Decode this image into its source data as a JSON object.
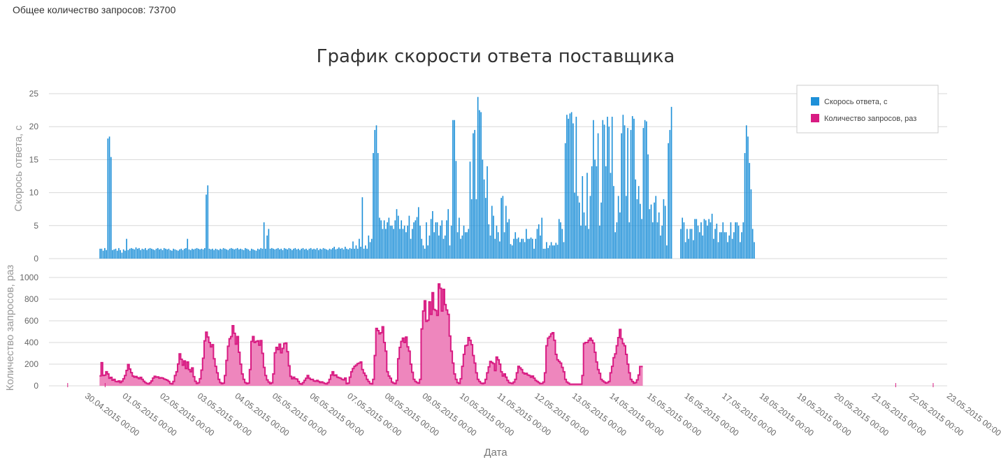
{
  "summary": {
    "total_requests": "Общее количество запросов: 73700"
  },
  "colors": {
    "speed": "#1e90d8",
    "requests_line": "#d81b82",
    "requests_fill": "#ee86bd",
    "grid": "#d8d8d8",
    "axis_text": "#666666"
  },
  "chart_data": {
    "type": "bar",
    "title": "График скорости ответа поставщика",
    "xlabel": "Дата",
    "x_ticks": [
      "30.04.2015 00:00",
      "01.05.2015 00:00",
      "02.05.2015 00:00",
      "03.05.2015 00:00",
      "04.05.2015 00:00",
      "05.05.2015 00:00",
      "06.05.2015 00:00",
      "07.05.2015 00:00",
      "08.05.2015 00:00",
      "09.05.2015 00:00",
      "10.05.2015 00:00",
      "11.05.2015 00:00",
      "12.05.2015 00:00",
      "13.05.2015 00:00",
      "14.05.2015 00:00",
      "15.05.2015 00:00",
      "16.05.2015 00:00",
      "17.05.2015 00:00",
      "18.05.2015 00:00",
      "19.05.2015 00:00",
      "20.05.2015 00:00",
      "21.05.2015 00:00",
      "22.05.2015 00:00",
      "23.05.2015 00:00"
    ],
    "grid": true,
    "legend_position": "top-right",
    "panels": [
      {
        "name": "Скорось ответа, с",
        "ylabel": "Скорось ответа, с",
        "type": "bar",
        "ylim": [
          0,
          25
        ],
        "yticks": [
          0,
          5,
          10,
          15,
          20,
          25
        ],
        "x_start_day": 1.35,
        "x_step_hours": 1,
        "values": [
          1.5,
          1.5,
          1.2,
          1.6,
          1.3,
          18.2,
          18.5,
          15.4,
          1.3,
          1.4,
          1.5,
          1.2,
          1.6,
          1.3,
          0.9,
          1.4,
          1.2,
          3,
          1.3,
          1.5,
          1.6,
          1.5,
          1.4,
          1.7,
          1.5,
          1.6,
          1.3,
          1.5,
          1.4,
          1.6,
          1.3,
          1.5,
          1.6,
          1.5,
          1.4,
          1.3,
          1.5,
          1.6,
          1.4,
          1.5,
          1.3,
          1.6,
          1.5,
          1.4,
          1.5,
          1.3,
          1.2,
          1.5,
          1.4,
          1.3,
          1.2,
          1.4,
          1.5,
          1.3,
          1.5,
          1.6,
          3,
          1.4,
          1.3,
          1.5,
          1.4,
          1.5,
          1.6,
          1.5,
          1.4,
          1.5,
          1.4,
          1.6,
          9.7,
          11.1,
          1.5,
          1.4,
          1.5,
          1.3,
          1.5,
          1.4,
          1.3,
          1.5,
          1.4,
          1.6,
          1.5,
          1.4,
          1.3,
          1.5,
          1.6,
          1.5,
          1.4,
          1.5,
          1.6,
          1.4,
          1.5,
          1.4,
          1.3,
          1.6,
          1.5,
          1.4,
          1.2,
          1.5,
          1.4,
          1.3,
          1.2,
          1.5,
          1.4,
          1.6,
          1.5,
          5.5,
          1.5,
          3.5,
          4.5,
          1.5,
          1.6,
          1.5,
          1.4,
          1.5,
          1.6,
          1.4,
          1.5,
          1.3,
          1.6,
          1.5,
          1.4,
          1.6,
          1.5,
          1.3,
          1.5,
          1.6,
          1.4,
          1.5,
          1.3,
          1.5,
          1.6,
          1.4,
          1.5,
          1.3,
          1.5,
          1.6,
          1.4,
          1.5,
          1.4,
          1.6,
          1.3,
          1.5,
          1.4,
          1.6,
          1.5,
          1.4,
          1.3,
          1.5,
          1.4,
          1.6,
          1.8,
          1.4,
          1.5,
          1.7,
          1.5,
          1.6,
          1.4,
          1.8,
          1.5,
          1.4,
          1.6,
          1.5,
          2.6,
          1.5,
          2,
          1.5,
          3,
          1.8,
          9.3,
          1.5,
          2,
          1.5,
          3.5,
          2.5,
          3,
          16,
          19.5,
          20.2,
          16,
          6.2,
          5.8,
          4.5,
          5.8,
          4.5,
          5.5,
          6.2,
          5,
          5,
          4.5,
          5.8,
          7.5,
          6.5,
          4.5,
          5.8,
          4.5,
          5,
          4,
          5,
          6.5,
          3,
          4.5,
          5.5,
          5.8,
          6.3,
          7.8,
          5,
          3,
          2,
          1.5,
          5.5,
          2,
          3.5,
          6,
          7.2,
          4,
          5.5,
          5.5,
          3.5,
          5,
          5.8,
          3,
          3.5,
          5.8,
          7.5,
          2,
          5,
          21,
          21,
          14.8,
          4,
          6.2,
          3,
          3.5,
          5,
          4,
          4,
          4.5,
          14.7,
          9,
          19,
          19.5,
          9,
          24.5,
          22.5,
          22.2,
          15,
          12,
          9.2,
          14,
          5.2,
          3.5,
          8,
          6.5,
          3,
          5,
          4,
          2.6,
          9.2,
          9.5,
          4,
          8,
          5.5,
          6,
          2.2,
          2,
          3,
          4,
          3,
          3.2,
          2.5,
          3,
          3,
          2.5,
          4.5,
          3,
          3,
          3.2,
          3,
          1.5,
          3,
          4.5,
          5.2,
          3.5,
          6.2,
          1.5,
          1.5,
          2.5,
          1.6,
          2,
          2.5,
          2,
          2,
          2.4,
          2.1,
          6,
          5.5,
          4.5,
          2.5,
          17.5,
          21.8,
          21.2,
          22,
          22.2,
          20.5,
          10,
          21.5,
          9.5,
          8.5,
          5,
          12.5,
          7,
          5,
          13,
          4.5,
          9.5,
          14,
          21,
          15,
          14,
          19,
          5,
          8.5,
          21,
          20.3,
          14,
          21.5,
          20,
          13,
          21.5,
          11,
          4,
          5.5,
          9.5,
          7,
          19,
          21.8,
          20.2,
          9.5,
          19.8,
          5.5,
          19.5,
          21.6,
          21.2,
          12,
          9,
          11,
          8.3,
          6,
          19.8,
          21,
          20.8,
          15.8,
          7.5,
          8.2,
          5.5,
          8.5,
          9.5,
          5.5,
          7,
          3.5,
          5,
          9,
          8,
          2,
          17.5,
          19.5,
          23,
          null,
          null,
          null,
          null,
          null,
          4.5,
          6.2,
          5.5,
          2.5,
          4.5,
          3,
          4.5,
          4.5,
          2.8,
          6,
          6,
          5,
          4,
          5.5,
          3.5,
          6,
          5.8,
          5,
          6,
          5.5,
          6.8,
          3,
          4.5,
          5.3,
          2.5,
          4,
          4,
          5.5,
          4,
          4,
          2.5,
          3.5,
          5.5,
          3,
          4,
          5.5,
          5.5,
          5,
          2.5,
          4,
          5.5,
          16,
          20.2,
          18.5,
          14.5,
          10.5,
          4.5,
          2.5
        ]
      },
      {
        "name": "Количество запросов, раз",
        "ylabel": "Количество запросов, раз",
        "type": "area",
        "ylim": [
          0,
          1000
        ],
        "yticks": [
          0,
          200,
          400,
          600,
          800,
          1000
        ],
        "x_start_day": 1.35,
        "x_step_hours": 1,
        "values": [
          92,
          214,
          95,
          98,
          130,
          110,
          70,
          78,
          52,
          60,
          40,
          38,
          45,
          30,
          43,
          65,
          95,
          142,
          197,
          155,
          122,
          90,
          80,
          86,
          75,
          66,
          78,
          60,
          42,
          30,
          22,
          18,
          28,
          45,
          72,
          88,
          80,
          82,
          70,
          75,
          72,
          63,
          58,
          52,
          40,
          22,
          18,
          40,
          95,
          130,
          202,
          295,
          245,
          190,
          230,
          160,
          220,
          150,
          130,
          165,
          85,
          42,
          22,
          28,
          65,
          145,
          255,
          415,
          495,
          450,
          400,
          360,
          380,
          250,
          180,
          120,
          60,
          30,
          20,
          25,
          95,
          235,
          365,
          435,
          455,
          555,
          485,
          385,
          455,
          310,
          200,
          110,
          60,
          30,
          20,
          25,
          150,
          410,
          455,
          400,
          410,
          415,
          375,
          418,
          300,
          170,
          95,
          55,
          35,
          20,
          28,
          110,
          305,
          355,
          335,
          385,
          305,
          345,
          390,
          395,
          315,
          185,
          88,
          65,
          80,
          65,
          62,
          40,
          20,
          15,
          30,
          50,
          70,
          95,
          70,
          58,
          60,
          45,
          42,
          50,
          40,
          30,
          36,
          28,
          22,
          18,
          30,
          60,
          100,
          130,
          95,
          100,
          80,
          75,
          70,
          60,
          55,
          72,
          20,
          25,
          80,
          130,
          160,
          180,
          190,
          205,
          210,
          220,
          150,
          118,
          95,
          60,
          40,
          22,
          18,
          60,
          280,
          530,
          510,
          480,
          490,
          545,
          400,
          320,
          130,
          90,
          70,
          35,
          25,
          20,
          50,
          250,
          355,
          410,
          440,
          400,
          450,
          360,
          320,
          200,
          125,
          60,
          40,
          30,
          24,
          60,
          525,
          690,
          785,
          595,
          605,
          775,
          660,
          860,
          705,
          695,
          650,
          940,
          900,
          690,
          890,
          750,
          700,
          660,
          460,
          320,
          210,
          110,
          60,
          30,
          22,
          65,
          180,
          290,
          370,
          375,
          445,
          420,
          380,
          280,
          210,
          120,
          60,
          40,
          25,
          20,
          25,
          60,
          120,
          175,
          225,
          215,
          205,
          140,
          265,
          240,
          200,
          130,
          90,
          110,
          80,
          50,
          30,
          25,
          22,
          35,
          60,
          120,
          180,
          165,
          150,
          120,
          110,
          115,
          100,
          95,
          80,
          90,
          70,
          50,
          40,
          30,
          20,
          22,
          35,
          120,
          370,
          440,
          455,
          480,
          490,
          420,
          290,
          240,
          225,
          210,
          170,
          130,
          60,
          35,
          25,
          15,
          15,
          15,
          15,
          15,
          15,
          15,
          15,
          95,
          390,
          400,
          400,
          420,
          440,
          420,
          395,
          310,
          220,
          150,
          115,
          60,
          45,
          35,
          25,
          30,
          40,
          120,
          180,
          260,
          295,
          370,
          445,
          520,
          435,
          390,
          370,
          290,
          200,
          120,
          60,
          40,
          25,
          30,
          55,
          100,
          178,
          178
        ]
      }
    ]
  }
}
